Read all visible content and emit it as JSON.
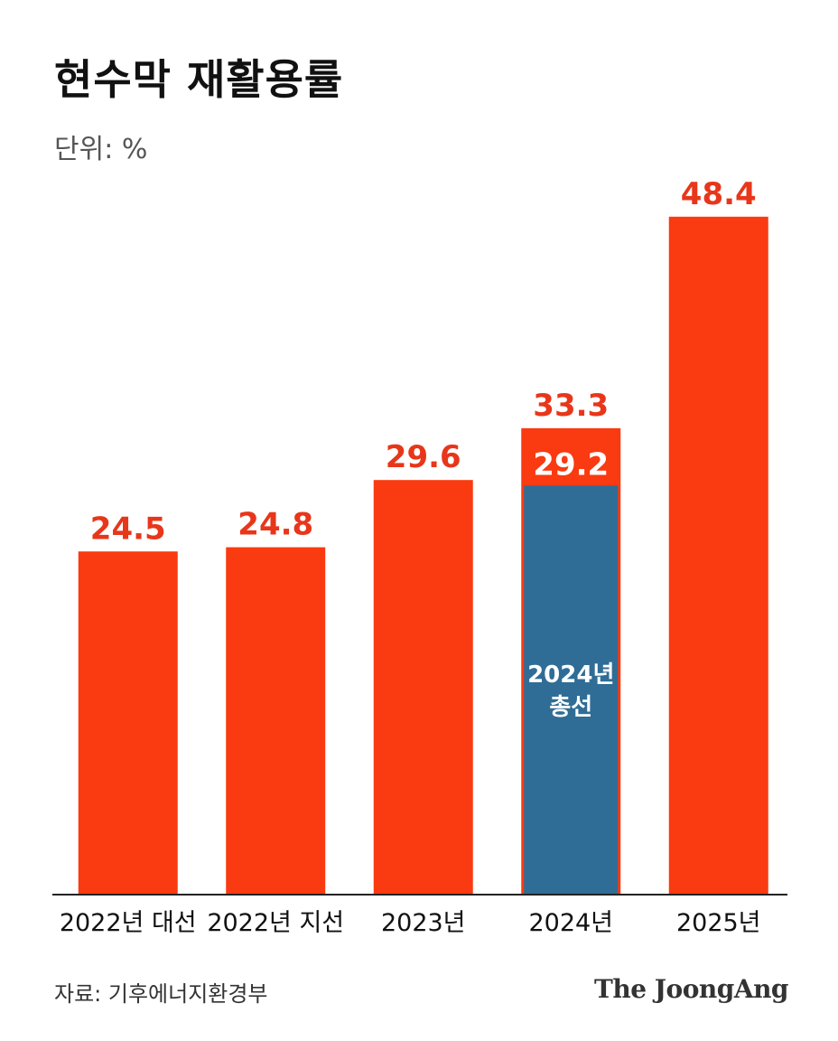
{
  "header": {
    "title": "현수막 재활용률",
    "unit": "단위: %"
  },
  "footer": {
    "source": "자료: 기후에너지환경부",
    "brand": "The JoongAng"
  },
  "colors": {
    "primary_bar": "#fa3a10",
    "secondary_bar": "#2f6d96",
    "primary_label": "#e8361a",
    "secondary_label": "#ffffff",
    "axis": "#222222"
  },
  "chart_data": {
    "type": "bar",
    "title": "현수막 재활용률",
    "categories": [
      "2022년 대선",
      "2022년 지선",
      "2023년",
      "2024년",
      "2025년"
    ],
    "series": [
      {
        "values": [
          24.5,
          24.8,
          29.6,
          33.3,
          48.4
        ]
      },
      {
        "values": [
          null,
          null,
          null,
          29.2,
          null
        ]
      }
    ],
    "overlay_annotation": {
      "category_index": 3,
      "text_lines": [
        "2024년",
        "총선"
      ]
    },
    "ylim": [
      0,
      55
    ],
    "grid": false,
    "legend": "none"
  }
}
